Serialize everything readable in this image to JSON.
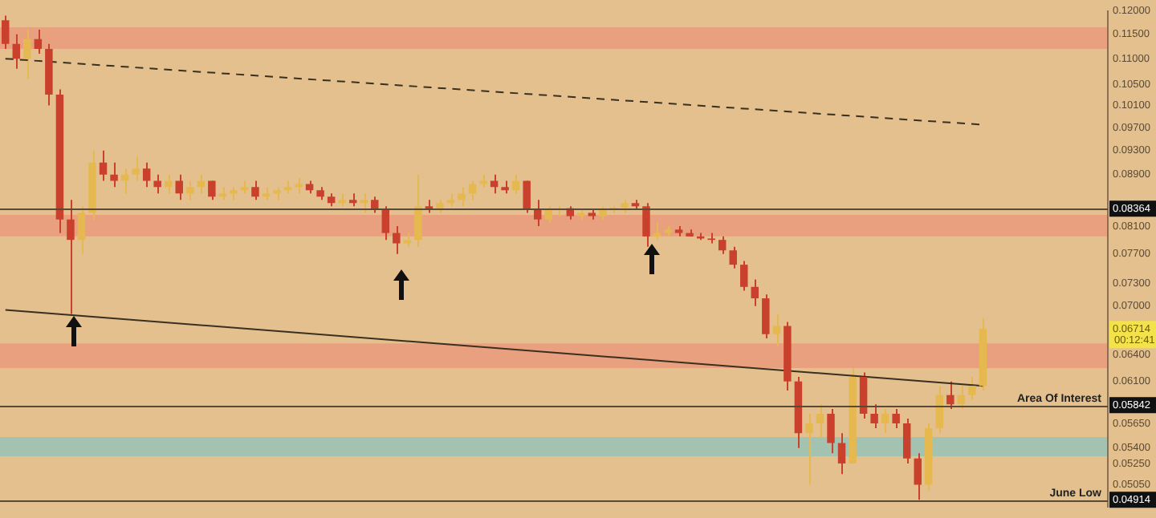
{
  "chart_data": {
    "type": "candlestick",
    "categories": [
      null,
      null,
      null,
      null,
      null,
      null,
      null,
      null,
      null,
      null,
      null,
      null,
      null,
      null,
      null,
      null,
      null,
      null,
      null,
      null,
      null,
      null,
      null,
      null,
      null,
      null,
      null,
      null,
      null,
      null,
      null,
      null,
      null,
      null,
      null,
      null,
      null,
      null,
      null,
      null,
      null,
      null,
      null,
      null,
      null,
      null,
      null,
      null,
      null,
      null,
      null,
      null,
      null,
      null,
      null,
      null,
      null,
      null,
      null,
      null,
      null,
      null,
      null,
      null,
      null,
      null,
      null,
      null,
      null,
      null,
      null,
      null,
      null,
      null,
      null,
      null,
      null,
      null,
      null,
      null,
      null,
      null,
      null,
      null,
      null,
      null,
      null,
      null,
      null,
      null,
      null,
      null,
      null,
      null,
      null,
      null,
      null,
      null,
      null,
      null,
      null,
      null
    ],
    "ohlc": [
      [
        0.118,
        0.119,
        0.112,
        0.113
      ],
      [
        0.113,
        0.115,
        0.108,
        0.11
      ],
      [
        0.11,
        0.116,
        0.106,
        0.114
      ],
      [
        0.114,
        0.116,
        0.111,
        0.112
      ],
      [
        0.112,
        0.113,
        0.101,
        0.103
      ],
      [
        0.103,
        0.104,
        0.08,
        0.082
      ],
      [
        0.082,
        0.085,
        0.069,
        0.079
      ],
      [
        0.079,
        0.084,
        0.077,
        0.083
      ],
      [
        0.083,
        0.093,
        0.082,
        0.091
      ],
      [
        0.091,
        0.093,
        0.088,
        0.089
      ],
      [
        0.089,
        0.091,
        0.087,
        0.088
      ],
      [
        0.088,
        0.09,
        0.086,
        0.089
      ],
      [
        0.089,
        0.092,
        0.088,
        0.09
      ],
      [
        0.09,
        0.091,
        0.087,
        0.088
      ],
      [
        0.088,
        0.089,
        0.086,
        0.087
      ],
      [
        0.087,
        0.089,
        0.086,
        0.088
      ],
      [
        0.088,
        0.089,
        0.085,
        0.086
      ],
      [
        0.086,
        0.088,
        0.085,
        0.087
      ],
      [
        0.087,
        0.089,
        0.086,
        0.088
      ],
      [
        0.088,
        0.088,
        0.085,
        0.0855
      ],
      [
        0.0855,
        0.087,
        0.085,
        0.086
      ],
      [
        0.086,
        0.087,
        0.085,
        0.0865
      ],
      [
        0.0865,
        0.088,
        0.086,
        0.087
      ],
      [
        0.087,
        0.088,
        0.085,
        0.0855
      ],
      [
        0.0855,
        0.087,
        0.085,
        0.086
      ],
      [
        0.086,
        0.087,
        0.085,
        0.0865
      ],
      [
        0.0865,
        0.088,
        0.086,
        0.087
      ],
      [
        0.087,
        0.0885,
        0.086,
        0.0875
      ],
      [
        0.0875,
        0.088,
        0.086,
        0.0865
      ],
      [
        0.0865,
        0.087,
        0.085,
        0.0855
      ],
      [
        0.0855,
        0.086,
        0.084,
        0.0845
      ],
      [
        0.0845,
        0.086,
        0.084,
        0.085
      ],
      [
        0.085,
        0.086,
        0.084,
        0.0845
      ],
      [
        0.0845,
        0.086,
        0.083,
        0.085
      ],
      [
        0.085,
        0.0855,
        0.083,
        0.0835
      ],
      [
        0.0835,
        0.084,
        0.079,
        0.08
      ],
      [
        0.08,
        0.081,
        0.077,
        0.0785
      ],
      [
        0.0785,
        0.08,
        0.078,
        0.079
      ],
      [
        0.079,
        0.089,
        0.078,
        0.084
      ],
      [
        0.084,
        0.085,
        0.083,
        0.0835
      ],
      [
        0.0835,
        0.085,
        0.083,
        0.0845
      ],
      [
        0.0845,
        0.086,
        0.084,
        0.085
      ],
      [
        0.085,
        0.087,
        0.084,
        0.086
      ],
      [
        0.086,
        0.088,
        0.085,
        0.0875
      ],
      [
        0.0875,
        0.089,
        0.087,
        0.088
      ],
      [
        0.088,
        0.089,
        0.086,
        0.087
      ],
      [
        0.087,
        0.088,
        0.086,
        0.0865
      ],
      [
        0.0865,
        0.089,
        0.086,
        0.088
      ],
      [
        0.088,
        0.088,
        0.083,
        0.0835
      ],
      [
        0.0835,
        0.085,
        0.081,
        0.082
      ],
      [
        0.082,
        0.084,
        0.0815,
        0.0835
      ],
      [
        0.0835,
        0.084,
        0.0825,
        0.0837
      ],
      [
        0.0837,
        0.084,
        0.082,
        0.0825
      ],
      [
        0.0825,
        0.0835,
        0.082,
        0.083
      ],
      [
        0.083,
        0.0835,
        0.082,
        0.0825
      ],
      [
        0.0825,
        0.084,
        0.082,
        0.0835
      ],
      [
        0.0835,
        0.084,
        0.083,
        0.0838
      ],
      [
        0.0838,
        0.085,
        0.083,
        0.0845
      ],
      [
        0.0845,
        0.085,
        0.0835,
        0.084
      ],
      [
        0.084,
        0.0845,
        0.078,
        0.0795
      ],
      [
        0.0795,
        0.0815,
        0.079,
        0.08
      ],
      [
        0.08,
        0.081,
        0.0795,
        0.0805
      ],
      [
        0.0805,
        0.081,
        0.0795,
        0.08
      ],
      [
        0.08,
        0.0805,
        0.0795,
        0.0795
      ],
      [
        0.0795,
        0.08,
        0.079,
        0.0792
      ],
      [
        0.0792,
        0.08,
        0.0785,
        0.079
      ],
      [
        0.079,
        0.0795,
        0.077,
        0.0775
      ],
      [
        0.0775,
        0.078,
        0.075,
        0.0755
      ],
      [
        0.0755,
        0.076,
        0.072,
        0.0725
      ],
      [
        0.0725,
        0.0735,
        0.07,
        0.071
      ],
      [
        0.071,
        0.0715,
        0.066,
        0.0665
      ],
      [
        0.0665,
        0.069,
        0.065,
        0.0675
      ],
      [
        0.0675,
        0.068,
        0.06,
        0.061
      ],
      [
        0.061,
        0.0615,
        0.054,
        0.0555
      ],
      [
        0.0555,
        0.0575,
        0.0505,
        0.0565
      ],
      [
        0.0565,
        0.0585,
        0.055,
        0.0575
      ],
      [
        0.0575,
        0.058,
        0.0535,
        0.0545
      ],
      [
        0.0545,
        0.0555,
        0.0515,
        0.0525
      ],
      [
        0.0525,
        0.0625,
        0.0525,
        0.0615
      ],
      [
        0.0615,
        0.062,
        0.057,
        0.0575
      ],
      [
        0.0575,
        0.0585,
        0.056,
        0.0565
      ],
      [
        0.0565,
        0.058,
        0.0555,
        0.0575
      ],
      [
        0.0575,
        0.058,
        0.056,
        0.0565
      ],
      [
        0.0565,
        0.057,
        0.0525,
        0.053
      ],
      [
        0.053,
        0.0535,
        0.04914,
        0.0505
      ],
      [
        0.0505,
        0.0565,
        0.05,
        0.056
      ],
      [
        0.056,
        0.0605,
        0.0555,
        0.0595
      ],
      [
        0.0595,
        0.061,
        0.058,
        0.0585
      ],
      [
        0.0585,
        0.0605,
        0.058,
        0.0595
      ],
      [
        0.0595,
        0.0615,
        0.059,
        0.0605
      ],
      [
        0.0605,
        0.0685,
        0.06,
        0.06714
      ],
      null,
      null,
      null,
      null,
      null,
      null,
      null,
      null,
      null,
      null,
      null
    ],
    "colors": [
      "#c9402c",
      "#c9402c",
      "#e6b950",
      "#c9402c",
      "#c9402c",
      "#c9402c",
      "#c9402c",
      "#e6b950",
      "#e6b950",
      "#c9402c",
      "#c9402c",
      "#e6b950",
      "#e6b950",
      "#c9402c",
      "#c9402c",
      "#e6b950",
      "#c9402c",
      "#e6b950",
      "#e6b950",
      "#c9402c",
      "#e6b950",
      "#e6b950",
      "#e6b950",
      "#c9402c",
      "#e6b950",
      "#e6b950",
      "#e6b950",
      "#e6b950",
      "#c9402c",
      "#c9402c",
      "#c9402c",
      "#e6b950",
      "#c9402c",
      "#e6b950",
      "#c9402c",
      "#c9402c",
      "#c9402c",
      "#e6b950",
      "#e6b950",
      "#c9402c",
      "#e6b950",
      "#e6b950",
      "#e6b950",
      "#e6b950",
      "#e6b950",
      "#c9402c",
      "#c9402c",
      "#e6b950",
      "#c9402c",
      "#c9402c",
      "#e6b950",
      "#e6b950",
      "#c9402c",
      "#e6b950",
      "#c9402c",
      "#e6b950",
      "#e6b950",
      "#e6b950",
      "#c9402c",
      "#c9402c",
      "#e6b950",
      "#e6b950",
      "#c9402c",
      "#c9402c",
      "#c9402c",
      "#c9402c",
      "#c9402c",
      "#c9402c",
      "#c9402c",
      "#c9402c",
      "#c9402c",
      "#e6b950",
      "#c9402c",
      "#c9402c",
      "#e6b950",
      "#e6b950",
      "#c9402c",
      "#c9402c",
      "#e6b950",
      "#c9402c",
      "#c9402c",
      "#e6b950",
      "#c9402c",
      "#c9402c",
      "#c9402c",
      "#e6b950",
      "#e6b950",
      "#c9402c",
      "#e6b950",
      "#e6b950",
      "#e6b950",
      null,
      null,
      null,
      null,
      null,
      null,
      null,
      null,
      null,
      null,
      null
    ],
    "series": [
      {
        "type": "line",
        "color": "#3a3020",
        "line_style": "dashed",
        "values": [
          0.11,
          null,
          null,
          null,
          null,
          null,
          null,
          null,
          null,
          null,
          null,
          null,
          null,
          null,
          null,
          null,
          null,
          null,
          null,
          null,
          null,
          null,
          null,
          null,
          null,
          null,
          null,
          null,
          null,
          null,
          null,
          null,
          null,
          null,
          null,
          null,
          null,
          null,
          null,
          null,
          null,
          null,
          null,
          null,
          null,
          null,
          null,
          null,
          null,
          null,
          null,
          null,
          null,
          null,
          null,
          null,
          null,
          null,
          null,
          null,
          null,
          null,
          null,
          null,
          null,
          null,
          null,
          null,
          null,
          null,
          null,
          null,
          null,
          null,
          null,
          null,
          null,
          null,
          null,
          null,
          null,
          null,
          null,
          null,
          null,
          null,
          null,
          null,
          null,
          null,
          0.0975,
          null,
          null,
          null,
          null,
          null,
          null,
          null,
          null,
          null,
          null,
          null
        ]
      },
      {
        "type": "line",
        "color": "#3a3020",
        "line_style": "solid",
        "values": [
          0.0695,
          null,
          null,
          null,
          null,
          null,
          null,
          null,
          null,
          null,
          null,
          null,
          null,
          null,
          null,
          null,
          null,
          null,
          null,
          null,
          null,
          null,
          null,
          null,
          null,
          null,
          null,
          null,
          null,
          null,
          null,
          null,
          null,
          null,
          null,
          null,
          null,
          null,
          null,
          null,
          null,
          null,
          null,
          null,
          null,
          null,
          null,
          null,
          null,
          null,
          null,
          null,
          null,
          null,
          null,
          null,
          null,
          null,
          null,
          null,
          null,
          null,
          null,
          null,
          null,
          null,
          null,
          null,
          null,
          null,
          null,
          null,
          null,
          null,
          null,
          null,
          null,
          null,
          null,
          null,
          null,
          null,
          null,
          null,
          null,
          null,
          null,
          null,
          null,
          null,
          0.0605,
          null,
          null,
          null,
          null,
          null,
          null,
          null,
          null,
          null,
          null,
          null
        ]
      }
    ],
    "log": "y",
    "ylim": [
      0.0485,
      0.12
    ],
    "yticks": [
      {
        "value": 0.12,
        "label": "0.12000"
      },
      {
        "value": 0.115,
        "label": "0.11500"
      },
      {
        "value": 0.11,
        "label": "0.11000"
      },
      {
        "value": 0.105,
        "label": "0.10500"
      },
      {
        "value": 0.101,
        "label": "0.10100"
      },
      {
        "value": 0.097,
        "label": "0.09700"
      },
      {
        "value": 0.093,
        "label": "0.09300"
      },
      {
        "value": 0.089,
        "label": "0.08900"
      },
      {
        "value": 0.08364,
        "label": "0.08364"
      },
      {
        "value": 0.081,
        "label": "0.08100"
      },
      {
        "value": 0.077,
        "label": "0.07700"
      },
      {
        "value": 0.073,
        "label": "0.07300"
      },
      {
        "value": 0.07,
        "label": "0.07000"
      },
      {
        "value": 0.06714,
        "label": "0.06714"
      },
      {
        "value": 0.064,
        "label": "0.06400"
      },
      {
        "value": 0.061,
        "label": "0.06100"
      },
      {
        "value": 0.05842,
        "label": "0.05842"
      },
      {
        "value": 0.0565,
        "label": "0.05650"
      },
      {
        "value": 0.054,
        "label": "0.05400"
      },
      {
        "value": 0.0525,
        "label": "0.05250"
      },
      {
        "value": 0.0505,
        "label": "0.05050"
      },
      {
        "value": 0.04914,
        "label": "0.04914"
      }
    ],
    "bands": [
      {
        "axis": "y",
        "from": 0.112,
        "to": 0.1165,
        "color": "#e8a07f"
      },
      {
        "axis": "y",
        "from": 0.0795,
        "to": 0.0827,
        "color": "#e8a07f"
      },
      {
        "axis": "y",
        "from": 0.0625,
        "to": 0.0654,
        "color": "#e8a07f"
      },
      {
        "axis": "y",
        "from": 0.0532,
        "to": 0.0551,
        "color": "#a3c2b0"
      }
    ],
    "ref_lines": [
      {
        "axis": "y",
        "value": 0.08364,
        "color": "#5a4a35"
      },
      {
        "axis": "y",
        "value": 0.05842,
        "label": "Area Of Interest",
        "color": "#5a4a35"
      },
      {
        "axis": "y",
        "value": 0.04914,
        "label": "June Low",
        "color": "#5a4a35"
      }
    ],
    "annotations": [
      "00:12:41"
    ],
    "grid": false,
    "legend": false,
    "tick_labels": "y"
  }
}
